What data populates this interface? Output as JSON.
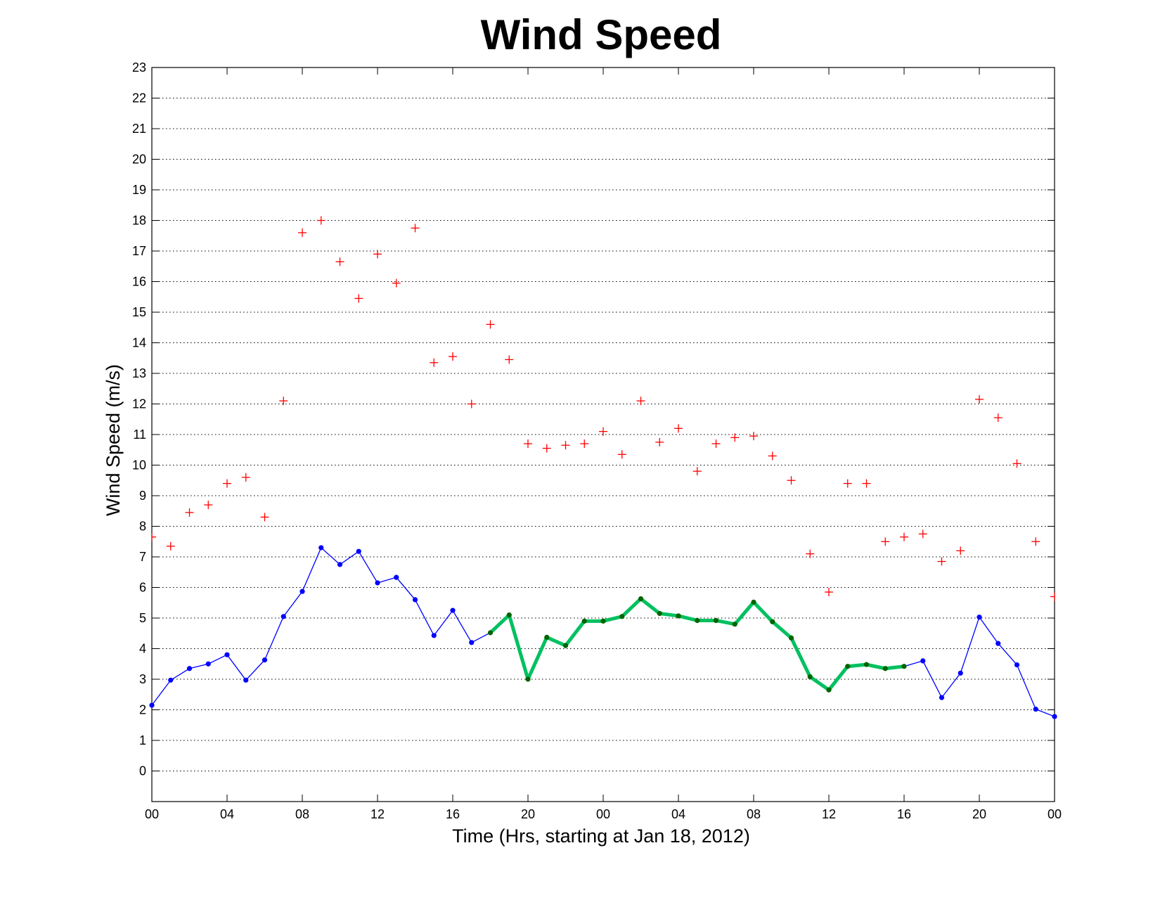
{
  "chart_data": {
    "type": "line",
    "title": "Wind Speed",
    "xlabel": "Time (Hrs, starting at Jan 18, 2012)",
    "ylabel": "Wind Speed (m/s)",
    "xlim": [
      0,
      48
    ],
    "ylim": [
      -1,
      23
    ],
    "yticks": [
      0,
      1,
      2,
      3,
      4,
      5,
      6,
      7,
      8,
      9,
      10,
      11,
      12,
      13,
      14,
      15,
      16,
      17,
      18,
      19,
      20,
      21,
      22,
      23
    ],
    "xticks": [
      0,
      4,
      8,
      12,
      16,
      20,
      24,
      28,
      32,
      36,
      40,
      44,
      48
    ],
    "xtick_labels": [
      "00",
      "04",
      "08",
      "12",
      "16",
      "20",
      "00",
      "04",
      "08",
      "12",
      "16",
      "20",
      "00"
    ],
    "grid": "horizontal dotted",
    "colors": {
      "wind_line": "#0000ff",
      "wind_marker": "#0000ff",
      "highlight_line": "#00c060",
      "highlight_marker": "#006400",
      "gust_marker": "#ff0000"
    },
    "series": [
      {
        "style": "line-with-dots",
        "x": [
          0,
          1,
          2,
          3,
          4,
          5,
          6,
          7,
          8,
          9,
          10,
          11,
          12,
          13,
          14,
          15,
          16,
          17,
          18,
          19,
          20,
          21,
          22,
          23,
          24,
          25,
          26,
          27,
          28,
          29,
          30,
          31,
          32,
          33,
          34,
          35,
          36,
          37,
          38,
          39,
          40,
          41,
          42,
          43,
          44,
          45,
          46,
          47,
          48
        ],
        "values": [
          2.15,
          2.97,
          3.35,
          3.5,
          3.8,
          2.97,
          3.63,
          5.05,
          5.87,
          7.3,
          6.75,
          7.18,
          6.15,
          6.33,
          5.6,
          4.43,
          5.25,
          4.2,
          4.52,
          5.1,
          3.0,
          4.37,
          4.1,
          4.9,
          4.9,
          5.05,
          5.63,
          5.15,
          5.07,
          4.92,
          4.92,
          4.8,
          5.52,
          4.88,
          4.35,
          3.08,
          2.65,
          3.42,
          3.48,
          3.35,
          3.42,
          3.6,
          2.4,
          3.2,
          5.03,
          4.17,
          3.47,
          2.02,
          1.78
        ]
      },
      {
        "style": "highlight",
        "x": [
          18,
          19,
          20,
          21,
          22,
          23,
          24,
          25,
          26,
          27,
          28,
          29,
          30,
          31,
          32,
          33,
          34,
          35,
          36,
          37,
          38,
          39,
          40
        ],
        "values": [
          4.52,
          5.1,
          3.0,
          4.37,
          4.1,
          4.9,
          4.9,
          5.05,
          5.63,
          5.15,
          5.07,
          4.92,
          4.92,
          4.8,
          5.52,
          4.88,
          4.35,
          3.08,
          2.65,
          3.42,
          3.48,
          3.35,
          3.42
        ]
      },
      {
        "style": "plus-markers",
        "x": [
          0,
          1,
          2,
          3,
          4,
          5,
          6,
          7,
          8,
          9,
          10,
          11,
          12,
          13,
          14,
          15,
          16,
          17,
          18,
          19,
          20,
          21,
          22,
          23,
          24,
          25,
          26,
          27,
          28,
          29,
          30,
          31,
          32,
          33,
          34,
          35,
          36,
          37,
          38,
          39,
          40,
          41,
          42,
          43,
          44,
          45,
          46,
          47,
          48
        ],
        "values": [
          7.65,
          7.35,
          8.45,
          8.7,
          9.4,
          9.6,
          8.3,
          12.1,
          17.6,
          18.0,
          16.65,
          15.45,
          16.9,
          15.95,
          17.75,
          13.35,
          13.55,
          12.0,
          14.6,
          13.45,
          10.7,
          10.55,
          10.65,
          10.7,
          11.1,
          10.35,
          12.1,
          10.75,
          11.2,
          9.8,
          10.7,
          10.9,
          10.95,
          10.3,
          9.5,
          7.1,
          5.85,
          9.4,
          9.4,
          7.5,
          7.65,
          7.75,
          6.85,
          7.2,
          12.15,
          11.55,
          10.05,
          7.5,
          5.7
        ]
      }
    ]
  }
}
